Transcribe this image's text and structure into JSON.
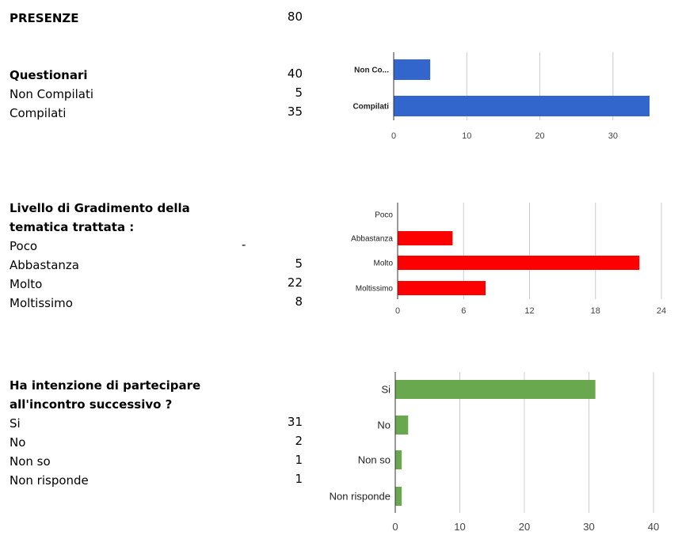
{
  "presenze": {
    "label": "PRESENZE",
    "value": "80"
  },
  "questionari": {
    "heading": "Questionari",
    "total": "40",
    "rows": [
      {
        "label": "Non Compilati",
        "value": "5"
      },
      {
        "label": "Compilati",
        "value": "35"
      }
    ]
  },
  "gradimento": {
    "heading_line1": "Livello di Gradimento della",
    "heading_line2": "tematica trattata :",
    "rows": [
      {
        "label": "Poco",
        "value": "-"
      },
      {
        "label": "Abbastanza",
        "value": "5"
      },
      {
        "label": "Molto",
        "value": "22"
      },
      {
        "label": "Moltissimo",
        "value": "8"
      }
    ]
  },
  "intenzione": {
    "heading_line1": "Ha intenzione di partecipare",
    "heading_line2": "all'incontro successivo ?",
    "rows": [
      {
        "label": "Si",
        "value": "31"
      },
      {
        "label": "No",
        "value": "2"
      },
      {
        "label": "Non so",
        "value": "1"
      },
      {
        "label": "Non risponde",
        "value": "1"
      }
    ]
  },
  "chart_data": [
    {
      "type": "bar",
      "orientation": "horizontal",
      "categories": [
        "Non Co...",
        "Compilati"
      ],
      "values": [
        5,
        35
      ],
      "xlim": [
        0,
        35
      ],
      "ticks": [
        "0",
        "10",
        "20",
        "30"
      ],
      "color": "#3366cc",
      "grid": true
    },
    {
      "type": "bar",
      "orientation": "horizontal",
      "categories": [
        "Poco",
        "Abbastanza",
        "Molto",
        "Moltissimo"
      ],
      "values": [
        0,
        5,
        22,
        8
      ],
      "xlim": [
        0,
        24
      ],
      "ticks": [
        "0",
        "6",
        "12",
        "18",
        "24"
      ],
      "color": "#ff0000",
      "grid": true
    },
    {
      "type": "bar",
      "orientation": "horizontal",
      "categories": [
        "Si",
        "No",
        "Non so",
        "Non risponde"
      ],
      "values": [
        31,
        2,
        1,
        1
      ],
      "xlim": [
        0,
        40
      ],
      "ticks": [
        "0",
        "10",
        "20",
        "30",
        "40"
      ],
      "color": "#6aa84f",
      "grid": true
    }
  ]
}
